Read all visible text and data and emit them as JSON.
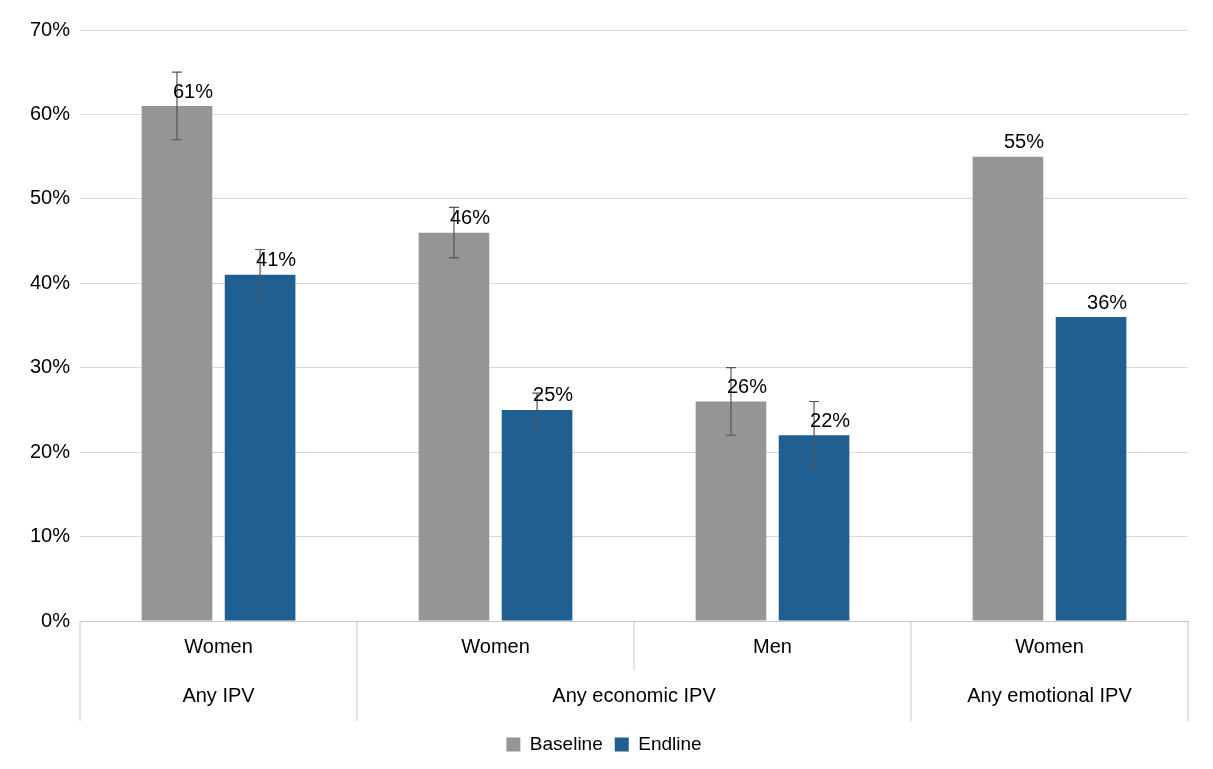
{
  "chart_data": {
    "type": "bar",
    "categories": [
      "Women",
      "Women",
      "Men",
      "Women"
    ],
    "series": [
      {
        "name": "Baseline",
        "color": "#959595",
        "values": [
          61,
          46,
          26,
          55
        ],
        "errors": [
          [
            57,
            65
          ],
          [
            43,
            49
          ],
          [
            22,
            30
          ],
          null
        ],
        "value_labels": [
          "61%",
          "46%",
          "26%",
          "55%"
        ]
      },
      {
        "name": "Endline",
        "color": "#1f5f91",
        "values": [
          41,
          25,
          22,
          36
        ],
        "errors": [
          [
            38,
            44
          ],
          [
            23,
            27
          ],
          [
            18,
            26
          ],
          null
        ],
        "value_labels": [
          "41%",
          "25%",
          "22%",
          "36%"
        ]
      }
    ],
    "ylim": [
      0,
      70
    ],
    "yticks": [
      {
        "value": 0,
        "label": "0%"
      },
      {
        "value": 10,
        "label": "10%"
      },
      {
        "value": 20,
        "label": "20%"
      },
      {
        "value": 30,
        "label": "30%"
      },
      {
        "value": 40,
        "label": "40%"
      },
      {
        "value": 50,
        "label": "50%"
      },
      {
        "value": 60,
        "label": "60%"
      },
      {
        "value": 70,
        "label": "70%"
      }
    ],
    "annotations": [
      "Any IPV",
      "Any economic IPV",
      "Any emotional IPV"
    ],
    "grid": "y",
    "legend": "bottom"
  }
}
